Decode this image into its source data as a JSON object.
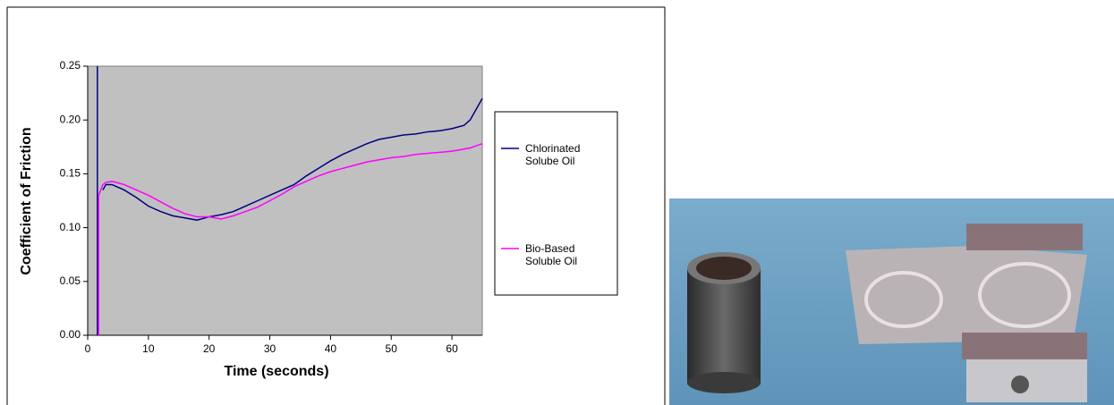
{
  "chart_data": {
    "type": "line",
    "xlabel": "Time (seconds)",
    "ylabel": "Coefficient of Friction",
    "xlim": [
      0,
      65
    ],
    "xticks": [
      0,
      10,
      20,
      30,
      40,
      50,
      60
    ],
    "ylim": [
      0,
      0.25
    ],
    "yticks": [
      {
        "value": 0,
        "label": "0.00"
      },
      0.05,
      {
        "value": 0.1,
        "label": "0.10"
      },
      0.15,
      {
        "value": 0.2,
        "label": "0.20"
      },
      0.25
    ],
    "plot_background": "#c0c0c0",
    "x": [
      1.6,
      1.6,
      1.8,
      1.8,
      2.5,
      3,
      4,
      6,
      8,
      10,
      12,
      14,
      16,
      18,
      20,
      22,
      24,
      26,
      28,
      30,
      32,
      34,
      36,
      38,
      40,
      42,
      44,
      46,
      48,
      50,
      52,
      54,
      56,
      58,
      60,
      62,
      63,
      64,
      65
    ],
    "series": [
      {
        "name": "Chlorinated Solube Oil",
        "color": "#000080",
        "values": [
          0,
          0.25,
          null,
          null,
          0.135,
          0.14,
          0.14,
          0.135,
          0.128,
          0.12,
          0.115,
          0.111,
          0.109,
          0.107,
          0.11,
          0.112,
          0.115,
          0.12,
          0.125,
          0.13,
          0.135,
          0.14,
          0.148,
          0.155,
          0.162,
          0.168,
          0.173,
          0.178,
          0.182,
          0.184,
          0.186,
          0.187,
          0.189,
          0.19,
          0.192,
          0.195,
          0.2,
          0.21,
          0.22
        ]
      },
      {
        "name": "Bio-Based Soluble Oil",
        "color": "#ff00ff",
        "values": [
          null,
          null,
          0,
          0.13,
          0.14,
          0.142,
          0.143,
          0.14,
          0.135,
          0.13,
          0.124,
          0.118,
          0.113,
          0.11,
          0.11,
          0.108,
          0.111,
          0.115,
          0.119,
          0.125,
          0.131,
          0.138,
          0.143,
          0.148,
          0.152,
          0.155,
          0.158,
          0.161,
          0.163,
          0.165,
          0.166,
          0.168,
          0.169,
          0.17,
          0.171,
          0.173,
          0.174,
          0.176,
          0.178
        ]
      }
    ]
  }
}
